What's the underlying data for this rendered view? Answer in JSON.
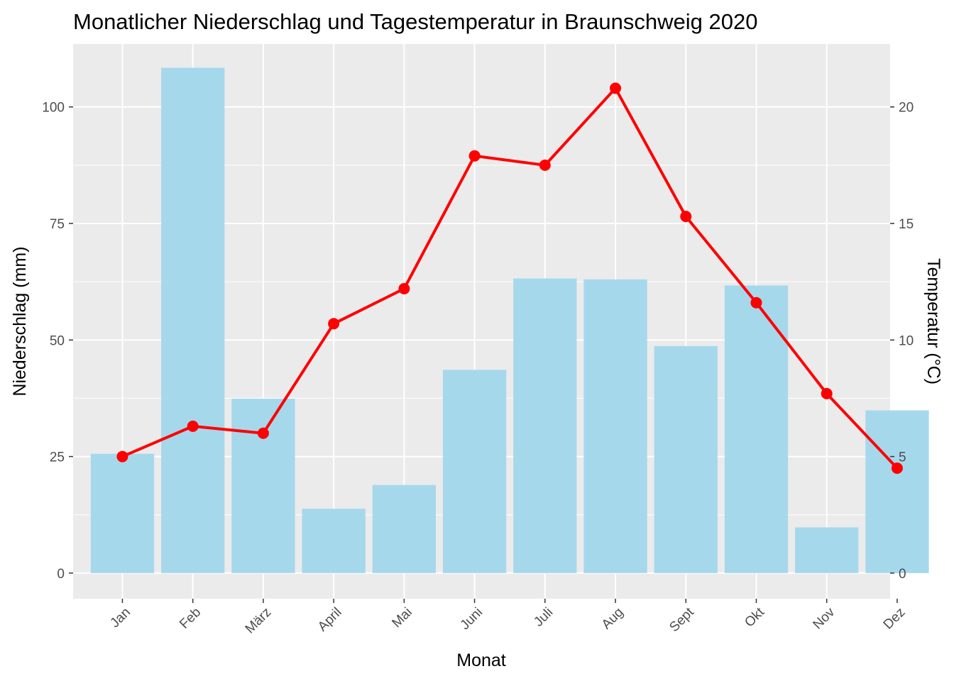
{
  "chart_data": {
    "type": "bar",
    "title": "Monatlicher Niederschlag und Tagestemperatur in Braunschweig 2020",
    "xlabel": "Monat",
    "ylabel": "Niederschlag (mm)",
    "y2label": "Temperatur (°C)",
    "categories": [
      "Jan",
      "Feb",
      "März",
      "April",
      "Mai",
      "Juni",
      "Juli",
      "Aug",
      "Sept",
      "Okt",
      "Nov",
      "Dez"
    ],
    "ylim": [
      -5.5,
      113.5
    ],
    "y2lim": [
      -1.1,
      22.7
    ],
    "yticks": [
      "0",
      "25",
      "50",
      "75",
      "100"
    ],
    "y2ticks": [
      "0",
      "5",
      "10",
      "15",
      "20"
    ],
    "grid": true,
    "series": [
      {
        "type": "bar",
        "axis": "left",
        "color": "#a6d8ec",
        "values": [
          25.6,
          108.4,
          37.4,
          13.8,
          18.9,
          43.6,
          63.2,
          63.0,
          48.7,
          61.7,
          9.8,
          34.9
        ]
      },
      {
        "type": "line",
        "axis": "right",
        "color": "#ff0000",
        "values": [
          5.0,
          6.3,
          6.0,
          10.7,
          12.2,
          17.9,
          17.5,
          20.8,
          15.3,
          11.6,
          7.7,
          4.5
        ]
      }
    ]
  }
}
